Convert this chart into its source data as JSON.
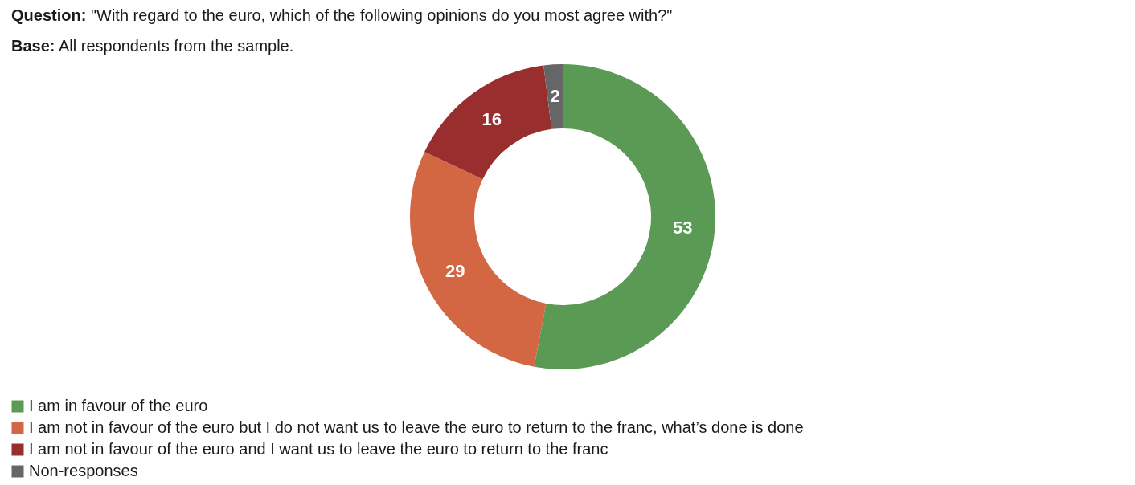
{
  "chart_data": {
    "type": "donut",
    "title": "Question: \"With regard to the euro, which of the following opinions do you most agree with?\"",
    "subtitle": "Base: All respondents from the sample.",
    "categories": [
      "I am in favour of the euro",
      "I am not in favour of the euro but I do not want us to leave the euro to return to the franc, what’s done is done",
      "I am not in favour of the euro and I want us to leave the euro to return to the franc",
      "Non-responses"
    ],
    "values": [
      53,
      29,
      16,
      2
    ],
    "colors": [
      "#5b9a55",
      "#d36743",
      "#992e2e",
      "#666666"
    ],
    "data_labels": true,
    "legend": "bottom left"
  }
}
